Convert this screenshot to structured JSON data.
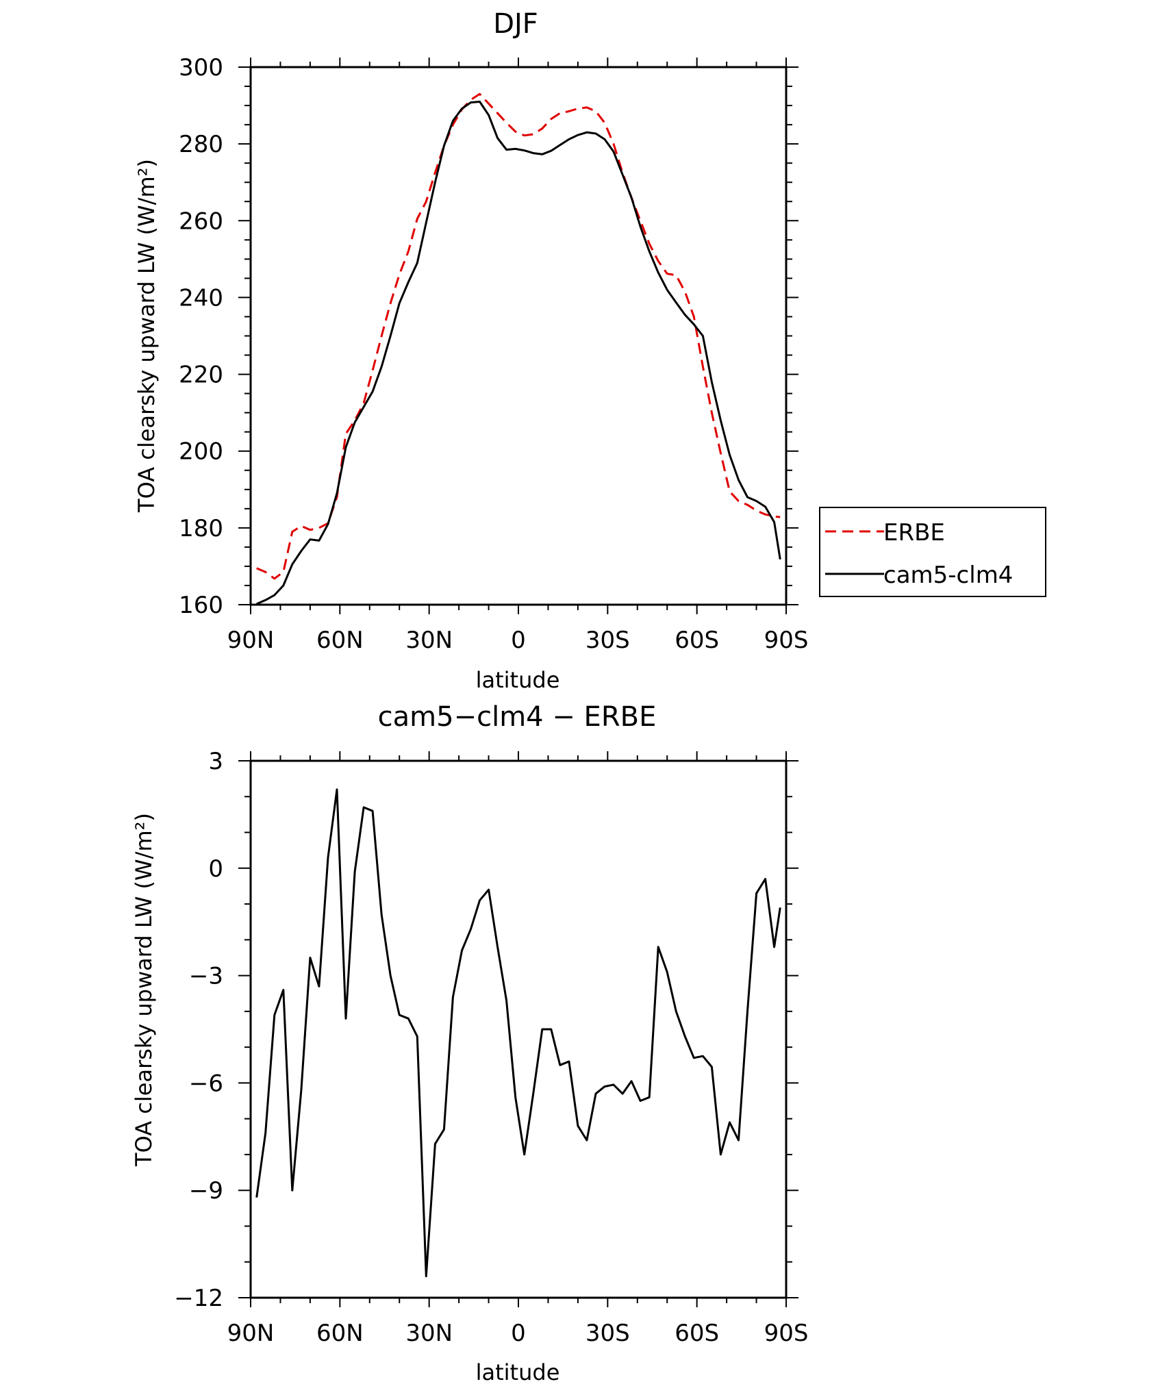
{
  "chart_data": [
    {
      "type": "line",
      "title": "DJF",
      "xlabel": "latitude",
      "ylabel": "TOA clearsky upward LW (W/m²)",
      "xlim": [
        90,
        -90
      ],
      "ylim": [
        160,
        300
      ],
      "xticks": [
        90,
        60,
        30,
        0,
        -30,
        -60,
        -90
      ],
      "xtick_labels": [
        "90N",
        "60N",
        "30N",
        "0",
        "30S",
        "60S",
        "90S"
      ],
      "yticks": [
        160,
        180,
        200,
        220,
        240,
        260,
        280,
        300
      ],
      "ytick_labels": [
        "160",
        "180",
        "200",
        "220",
        "240",
        "260",
        "280",
        "300"
      ],
      "legend_position": "right",
      "series": [
        {
          "name": "ERBE",
          "color": "#e00000",
          "dash": "dashed",
          "x": [
            88,
            85,
            82,
            79,
            76,
            73,
            70,
            67,
            64,
            61,
            58,
            55,
            52,
            49,
            46,
            43,
            40,
            37,
            34,
            31,
            28,
            25,
            22,
            19,
            16,
            13,
            10,
            7,
            4,
            1,
            -2,
            -5,
            -8,
            -11,
            -14,
            -17,
            -20,
            -23,
            -26,
            -29,
            -32,
            -35,
            -38,
            -41,
            -44,
            -47,
            -50,
            -53,
            -56,
            -59,
            -62,
            -65,
            -68,
            -71,
            -74,
            -77,
            -80,
            -83,
            -86,
            -88
          ],
          "y": [
            169.5,
            168.5,
            166.8,
            168.5,
            179,
            180.5,
            179.5,
            180,
            181.2,
            188,
            204.5,
            208,
            212.5,
            221,
            230,
            238.5,
            246,
            252,
            260.5,
            265,
            272.5,
            279.5,
            285,
            289,
            291.5,
            293,
            290.5,
            288,
            285.5,
            283.2,
            282.2,
            282.5,
            284,
            286.5,
            288,
            288.5,
            289.2,
            289.5,
            288.5,
            285.5,
            280,
            272.5,
            266,
            260,
            254,
            249.5,
            246.2,
            245.8,
            241.5,
            235,
            222,
            210,
            199.5,
            189.5,
            187,
            186,
            184.5,
            183.5,
            183,
            182.8
          ]
        },
        {
          "name": "cam5-clm4",
          "color": "#000000",
          "dash": "solid",
          "x": [
            88,
            85,
            82,
            79,
            76,
            73,
            70,
            67,
            64,
            61,
            58,
            55,
            52,
            49,
            46,
            43,
            40,
            37,
            34,
            31,
            28,
            25,
            22,
            19,
            16,
            13,
            10,
            7,
            4,
            1,
            -2,
            -5,
            -8,
            -11,
            -14,
            -17,
            -20,
            -23,
            -26,
            -29,
            -32,
            -35,
            -38,
            -41,
            -44,
            -47,
            -50,
            -53,
            -56,
            -59,
            -62,
            -65,
            -68,
            -71,
            -74,
            -77,
            -80,
            -83,
            -86,
            -88
          ],
          "y": [
            160.2,
            161.2,
            162.5,
            165,
            170.5,
            174,
            177,
            176.7,
            181,
            189,
            201,
            207.5,
            211.5,
            215.5,
            222,
            230,
            238.5,
            244,
            249,
            259.5,
            270,
            279.5,
            286,
            289.2,
            290.8,
            291,
            287.5,
            281.5,
            278.5,
            278.7,
            278.3,
            277.6,
            277.3,
            278.2,
            279.7,
            281.2,
            282.3,
            283,
            282.7,
            281.2,
            278,
            272,
            266,
            258.5,
            252,
            246.5,
            242,
            238.7,
            235.5,
            233,
            230,
            218,
            208,
            199,
            192.5,
            188,
            187,
            185.5,
            181.5,
            171.8
          ]
        }
      ]
    },
    {
      "type": "line",
      "title": "cam5−clm4 − ERBE",
      "xlabel": "latitude",
      "ylabel": "TOA clearsky upward LW (W/m²)",
      "xlim": [
        90,
        -90
      ],
      "ylim": [
        -12,
        3
      ],
      "xticks": [
        90,
        60,
        30,
        0,
        -30,
        -60,
        -90
      ],
      "xtick_labels": [
        "90N",
        "60N",
        "30N",
        "0",
        "30S",
        "60S",
        "90S"
      ],
      "yticks": [
        3,
        0,
        -3,
        -6,
        -9,
        -12
      ],
      "ytick_labels": [
        "3",
        "0",
        "−3",
        "−6",
        "−9",
        "−12"
      ],
      "series": [
        {
          "color": "#000000",
          "dash": "solid",
          "x": [
            88,
            85,
            82,
            79,
            76,
            73,
            70,
            67,
            64,
            61,
            58,
            55,
            52,
            49,
            46,
            43,
            40,
            37,
            34,
            31,
            28,
            25,
            22,
            19,
            16,
            13,
            10,
            7,
            4,
            1,
            -2,
            -5,
            -8,
            -11,
            -14,
            -17,
            -20,
            -23,
            -26,
            -29,
            -32,
            -35,
            -38,
            -41,
            -44,
            -47,
            -50,
            -53,
            -56,
            -59,
            -62,
            -65,
            -68,
            -71,
            -74,
            -77,
            -80,
            -83,
            -86,
            -88
          ],
          "y": [
            -9.2,
            -7.4,
            -4.1,
            -3.4,
            -9,
            -6.2,
            -2.5,
            -3.3,
            0.3,
            2.2,
            -4.2,
            -0.1,
            1.7,
            1.6,
            -1.3,
            -3,
            -4.1,
            -4.2,
            -4.7,
            -11.4,
            -7.7,
            -7.3,
            -3.6,
            -2.3,
            -1.7,
            -0.9,
            -0.6,
            -2.2,
            -3.7,
            -6.4,
            -8,
            -6.3,
            -4.5,
            -4.5,
            -5.5,
            -5.4,
            -7.2,
            -7.6,
            -6.3,
            -6.1,
            -6.05,
            -6.3,
            -5.95,
            -6.5,
            -6.4,
            -2.2,
            -2.9,
            -4,
            -4.7,
            -5.3,
            -5.25,
            -5.55,
            -8,
            -7.1,
            -7.6,
            -4,
            -0.7,
            -0.3,
            -2.2,
            -1.1
          ]
        }
      ]
    }
  ]
}
